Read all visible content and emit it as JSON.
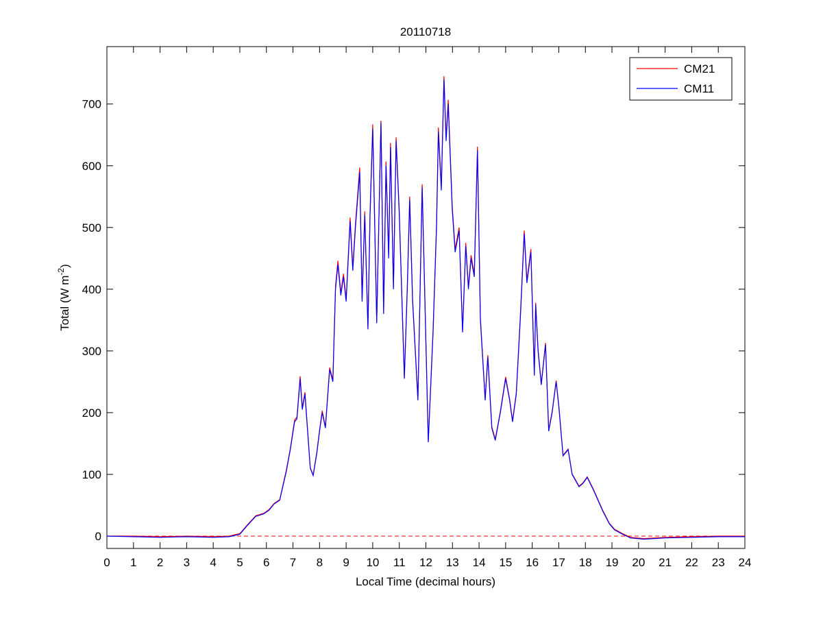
{
  "chart_data": {
    "type": "line",
    "title": "20110718",
    "xlabel": "Local Time (decimal hours)",
    "ylabel": [
      "Total (W m",
      "-2",
      ")"
    ],
    "xlim": [
      0,
      24
    ],
    "xticks": [
      0,
      1,
      2,
      3,
      4,
      5,
      6,
      7,
      8,
      9,
      10,
      11,
      12,
      13,
      14,
      15,
      16,
      17,
      18,
      19,
      20,
      21,
      22,
      23,
      24
    ],
    "ylim": [
      -20,
      793
    ],
    "yticks": [
      0,
      100,
      200,
      300,
      400,
      500,
      600,
      700
    ],
    "legend": "top-right",
    "hline": {
      "value": 0,
      "color": "#ff0000",
      "dashed": true
    },
    "x": [
      0,
      1,
      2,
      3,
      4,
      4.6,
      5.0,
      5.3,
      5.6,
      5.9,
      6.1,
      6.29,
      6.5,
      6.75,
      6.9,
      7.06,
      7.15,
      7.27,
      7.35,
      7.45,
      7.55,
      7.65,
      7.76,
      7.9,
      8.0,
      8.1,
      8.22,
      8.38,
      8.5,
      8.6,
      8.69,
      8.8,
      8.9,
      9.0,
      9.15,
      9.25,
      9.35,
      9.51,
      9.6,
      9.7,
      9.82,
      9.9,
      10.0,
      10.15,
      10.31,
      10.41,
      10.5,
      10.6,
      10.67,
      10.78,
      10.88,
      11.0,
      11.19,
      11.3,
      11.39,
      11.5,
      11.7,
      11.86,
      12.09,
      12.27,
      12.4,
      12.47,
      12.58,
      12.68,
      12.76,
      12.84,
      12.99,
      13.1,
      13.25,
      13.38,
      13.5,
      13.6,
      13.7,
      13.82,
      13.94,
      14.05,
      14.23,
      14.33,
      14.48,
      14.61,
      14.8,
      15.0,
      15.15,
      15.26,
      15.4,
      15.55,
      15.7,
      15.8,
      15.95,
      16.08,
      16.13,
      16.22,
      16.34,
      16.5,
      16.62,
      16.75,
      16.9,
      17.0,
      17.16,
      17.35,
      17.5,
      17.76,
      17.9,
      18.07,
      18.3,
      18.66,
      18.9,
      19.1,
      19.4,
      19.7,
      20.2,
      21,
      22,
      23,
      24
    ],
    "series": [
      {
        "name": "CM21",
        "color": "#ff0000",
        "values": [
          0,
          0,
          -1,
          0,
          -1,
          0,
          4,
          19,
          33,
          37,
          43,
          53,
          59,
          107,
          142,
          188,
          193,
          259,
          208,
          233,
          172,
          111,
          99,
          137,
          172,
          203,
          177,
          273,
          253,
          405,
          446,
          394,
          425,
          384,
          516,
          435,
          506,
          597,
          384,
          526,
          338,
          526,
          667,
          348,
          673,
          364,
          607,
          455,
          637,
          404,
          646,
          525,
          257,
          404,
          550,
          384,
          222,
          570,
          154,
          333,
          505,
          662,
          566,
          745,
          646,
          707,
          536,
          465,
          500,
          333,
          475,
          404,
          455,
          424,
          631,
          354,
          222,
          293,
          177,
          157,
          202,
          258,
          222,
          187,
          232,
          354,
          495,
          414,
          465,
          262,
          378,
          303,
          247,
          313,
          172,
          202,
          252,
          212,
          131,
          141,
          101,
          81,
          86,
          96,
          76,
          41,
          21,
          11,
          4,
          -2,
          -4,
          -2,
          -1,
          0,
          0
        ]
      },
      {
        "name": "CM11",
        "color": "#0000ff",
        "values": [
          0,
          -1,
          -2,
          -1,
          -2,
          -1,
          3,
          18,
          32,
          36,
          42,
          52,
          58,
          105,
          140,
          185,
          190,
          255,
          205,
          230,
          170,
          110,
          98,
          135,
          170,
          200,
          175,
          270,
          250,
          400,
          440,
          390,
          420,
          380,
          510,
          430,
          500,
          590,
          380,
          520,
          335,
          520,
          660,
          345,
          670,
          360,
          600,
          450,
          630,
          400,
          640,
          520,
          255,
          400,
          545,
          380,
          220,
          565,
          152,
          330,
          500,
          655,
          560,
          740,
          640,
          700,
          530,
          460,
          495,
          330,
          470,
          400,
          450,
          420,
          625,
          350,
          220,
          290,
          175,
          155,
          200,
          255,
          220,
          185,
          230,
          350,
          490,
          410,
          460,
          260,
          375,
          300,
          245,
          310,
          170,
          200,
          250,
          210,
          130,
          140,
          100,
          80,
          85,
          95,
          75,
          40,
          20,
          10,
          3,
          -3,
          -5,
          -3,
          -2,
          -1,
          -1
        ]
      }
    ]
  }
}
